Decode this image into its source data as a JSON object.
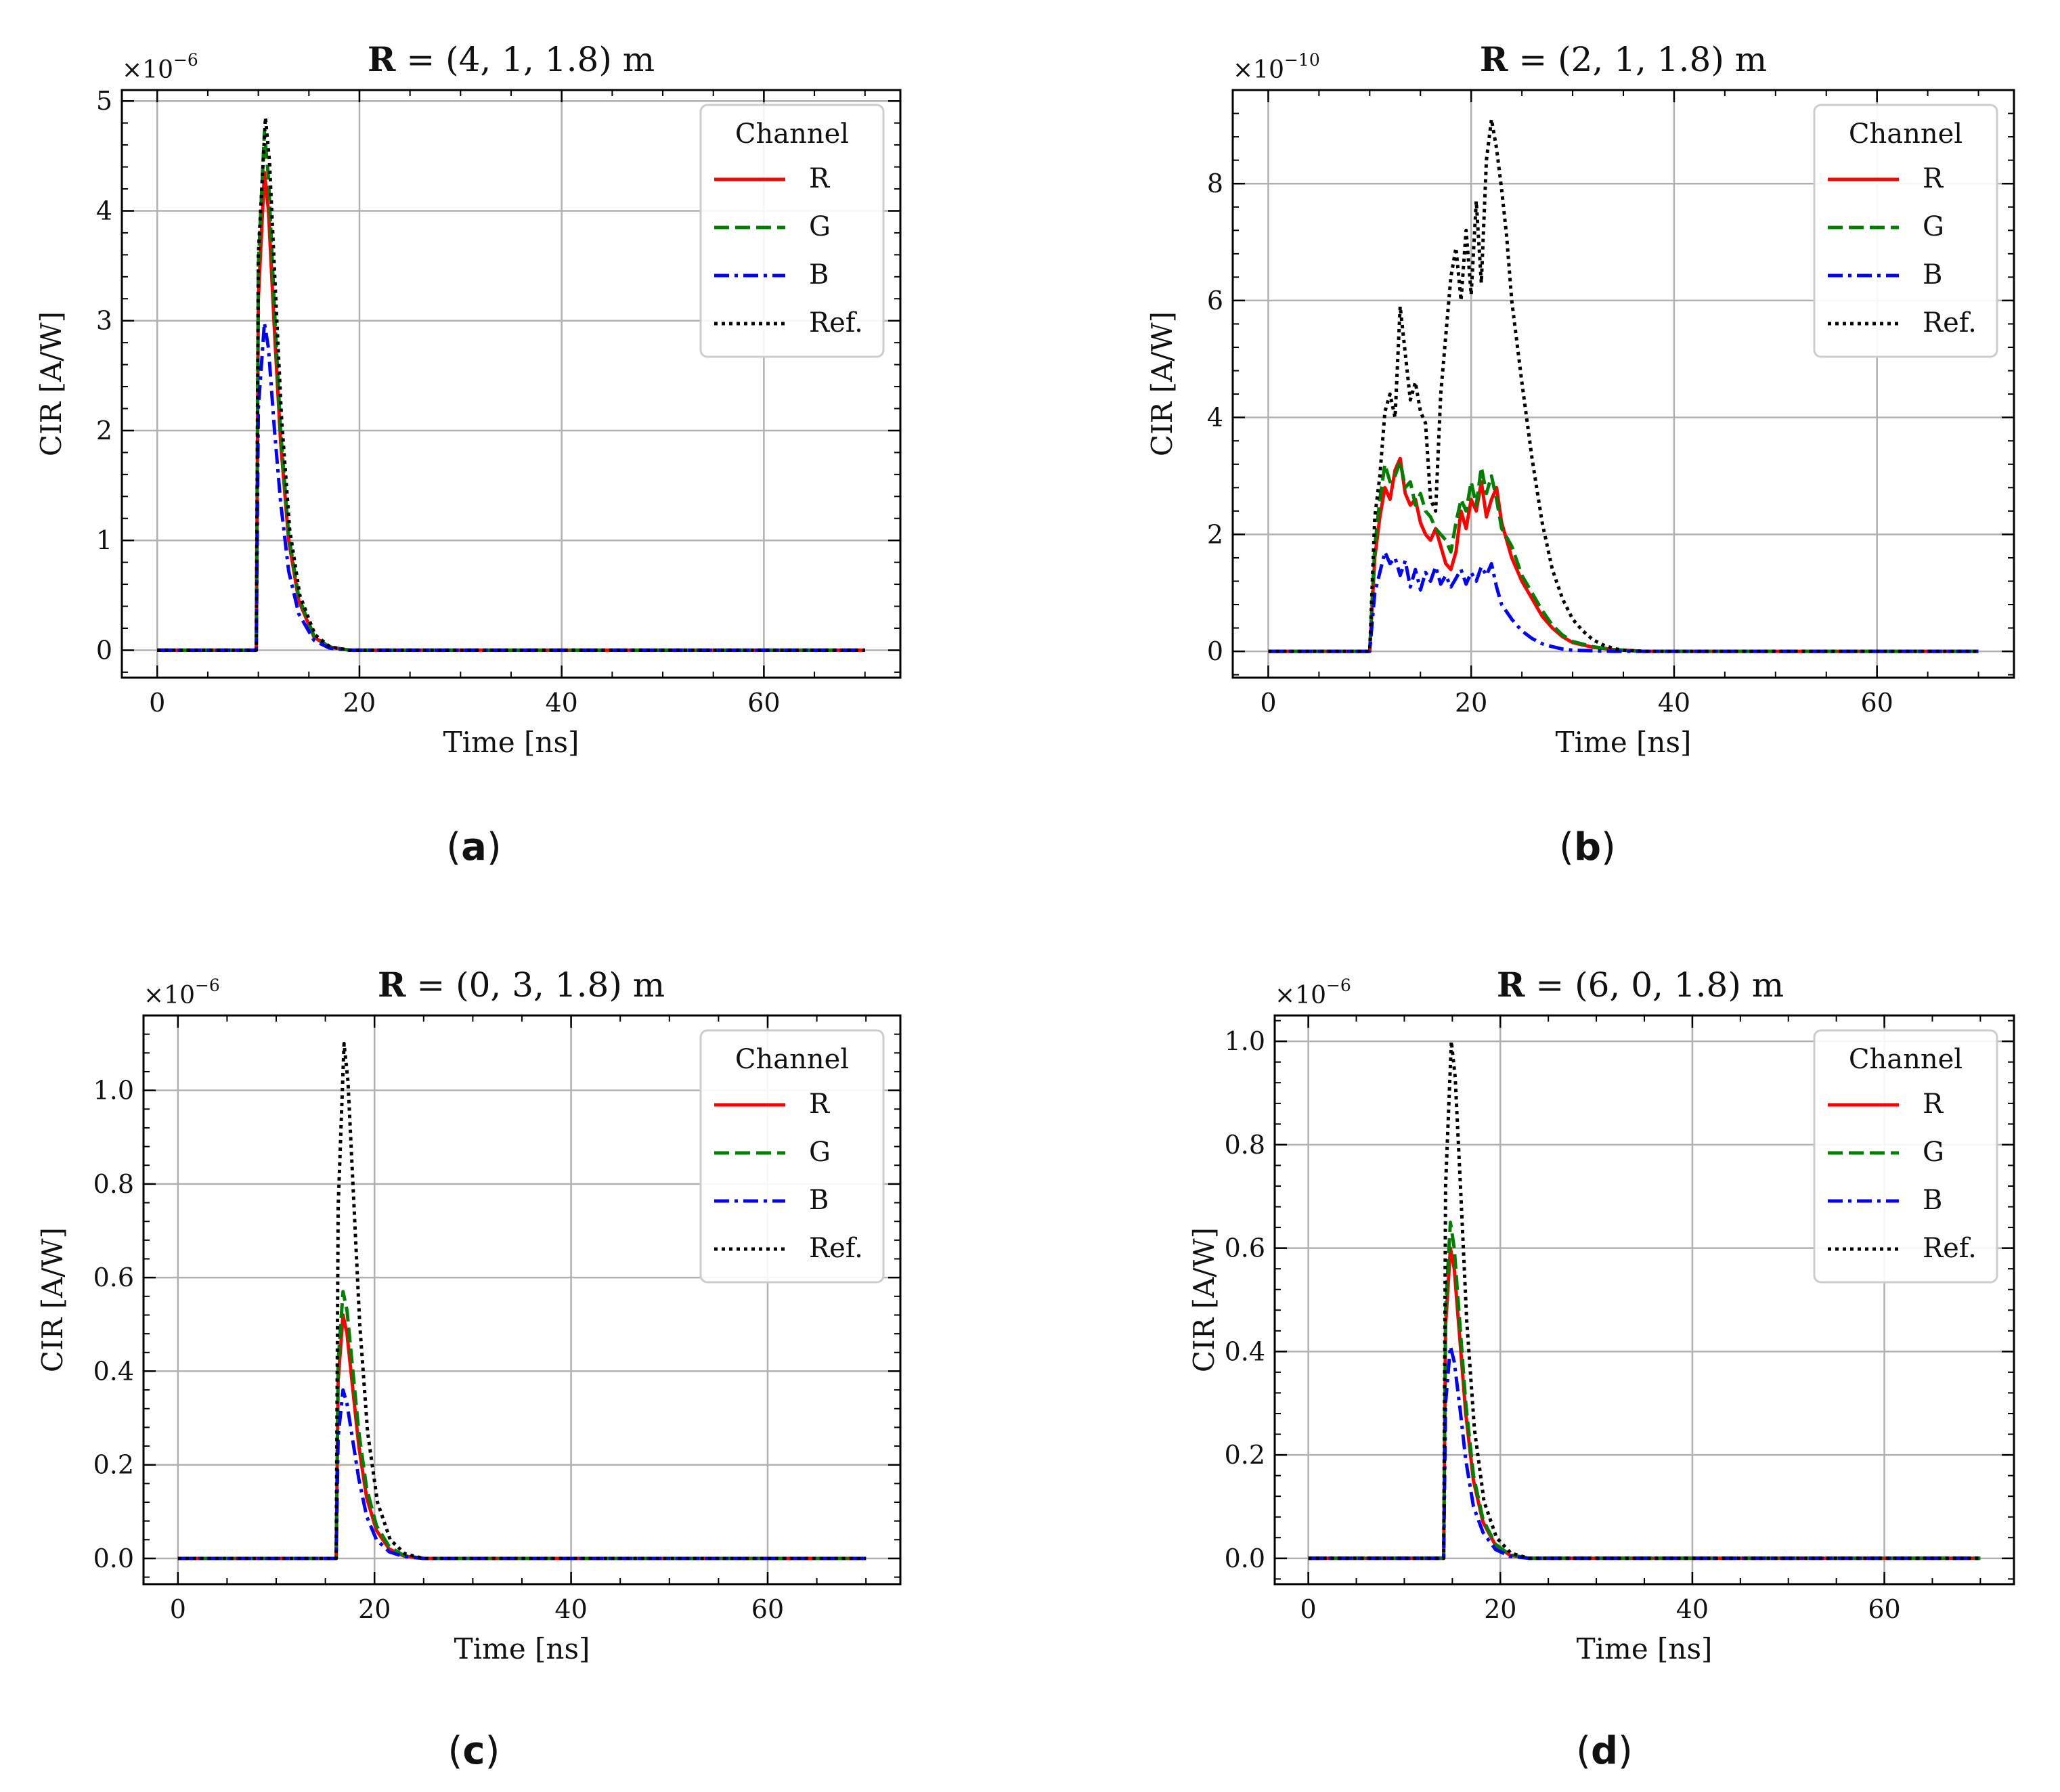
{
  "chart_data": [
    {
      "type": "line",
      "title": "R = (4, 1, 1.8) m",
      "title_bold": "R",
      "title_rest": " = (4, 1, 1.8) m",
      "caption": "a",
      "xlabel": "Time [ns]",
      "ylabel": "CIR [A/W]",
      "multiplier": "×10",
      "multiplier_exp": "−6",
      "xlim": [
        -3.5,
        73.5
      ],
      "ylim": [
        -0.25,
        5.1
      ],
      "xticks": [
        0,
        20,
        40,
        60
      ],
      "yticks": [
        0,
        1,
        2,
        3,
        4,
        5
      ],
      "ytick_labels": [
        "0",
        "1",
        "2",
        "3",
        "4",
        "5"
      ],
      "legend_title": "Channel",
      "series": [
        {
          "name": "R",
          "color": "#ff0000",
          "dash": "solid",
          "x": [
            0,
            9.8,
            10.0,
            10.6,
            11.0,
            11.6,
            12.2,
            13.0,
            14.0,
            15.5,
            17.0,
            19.0,
            25,
            70
          ],
          "y": [
            0,
            0,
            3.2,
            4.35,
            4.0,
            2.9,
            1.9,
            1.0,
            0.45,
            0.12,
            0.03,
            0.0,
            0,
            0
          ]
        },
        {
          "name": "G",
          "color": "#008000",
          "dash": "dashed",
          "x": [
            0,
            9.8,
            10.0,
            10.6,
            11.0,
            11.6,
            12.2,
            13.0,
            14.0,
            15.5,
            17.0,
            19.0,
            25,
            70
          ],
          "y": [
            0,
            0,
            3.5,
            4.72,
            4.3,
            3.1,
            2.0,
            1.05,
            0.48,
            0.13,
            0.03,
            0.0,
            0,
            0
          ]
        },
        {
          "name": "B",
          "color": "#0000ff",
          "dash": "dashdot",
          "x": [
            0,
            9.8,
            10.0,
            10.6,
            11.0,
            11.6,
            12.2,
            13.0,
            14.0,
            15.5,
            17.0,
            19.0,
            25,
            70
          ],
          "y": [
            0,
            0,
            2.2,
            2.98,
            2.75,
            2.0,
            1.35,
            0.72,
            0.33,
            0.09,
            0.02,
            0.0,
            0,
            0
          ]
        },
        {
          "name": "Ref.",
          "color": "#000000",
          "dash": "dotted",
          "x": [
            0,
            9.8,
            10.0,
            10.7,
            11.1,
            11.7,
            12.3,
            13.1,
            14.1,
            15.6,
            17.1,
            19.0,
            25,
            70
          ],
          "y": [
            0,
            0,
            3.6,
            4.85,
            4.45,
            3.25,
            2.1,
            1.1,
            0.5,
            0.14,
            0.03,
            0.0,
            0,
            0
          ]
        }
      ]
    },
    {
      "type": "line",
      "title": "R = (2, 1, 1.8) m",
      "title_bold": "R",
      "title_rest": " = (2, 1, 1.8) m",
      "caption": "b",
      "xlabel": "Time [ns]",
      "ylabel": "CIR [A/W]",
      "multiplier": "×10",
      "multiplier_exp": "−10",
      "xlim": [
        -3.5,
        73.5
      ],
      "ylim": [
        -0.45,
        9.6
      ],
      "xticks": [
        0,
        20,
        40,
        60
      ],
      "yticks": [
        0,
        2,
        4,
        6,
        8
      ],
      "ytick_labels": [
        "0",
        "2",
        "4",
        "6",
        "8"
      ],
      "legend_title": "Channel",
      "series": [
        {
          "name": "R",
          "color": "#ff0000",
          "dash": "solid",
          "x": [
            0,
            10.0,
            10.5,
            11.0,
            11.5,
            12.0,
            12.5,
            13.0,
            13.5,
            14.0,
            14.5,
            15.0,
            15.5,
            16.0,
            16.5,
            17.0,
            17.5,
            18.0,
            18.5,
            19.0,
            19.5,
            20.0,
            20.5,
            21.0,
            21.5,
            22.0,
            22.5,
            23.0,
            24.0,
            25.0,
            26.0,
            27.0,
            28.0,
            29.0,
            30.0,
            32.0,
            34.0,
            37.0,
            70
          ],
          "y": [
            0,
            0,
            1.6,
            2.3,
            2.8,
            2.6,
            3.1,
            3.3,
            2.7,
            2.5,
            2.6,
            2.2,
            2.0,
            1.9,
            2.1,
            1.8,
            1.5,
            1.4,
            1.7,
            2.4,
            2.1,
            2.6,
            2.4,
            2.9,
            2.3,
            2.6,
            2.8,
            2.2,
            1.6,
            1.2,
            0.9,
            0.6,
            0.4,
            0.25,
            0.15,
            0.07,
            0.03,
            0.0,
            0
          ]
        },
        {
          "name": "G",
          "color": "#008000",
          "dash": "dashed",
          "x": [
            0,
            10.0,
            10.5,
            11.0,
            11.5,
            12.0,
            12.5,
            13.0,
            13.5,
            14.0,
            14.5,
            15.0,
            15.5,
            16.0,
            16.5,
            17.0,
            17.5,
            18.0,
            18.5,
            19.0,
            19.5,
            20.0,
            20.5,
            21.0,
            21.5,
            22.0,
            22.5,
            23.0,
            24.0,
            25.0,
            26.0,
            27.0,
            28.0,
            29.0,
            30.0,
            32.0,
            34.0,
            37.0,
            70
          ],
          "y": [
            0,
            0,
            1.8,
            2.6,
            3.2,
            2.9,
            3.0,
            3.25,
            2.8,
            2.9,
            2.5,
            2.7,
            2.4,
            2.3,
            2.1,
            2.0,
            1.9,
            1.7,
            2.2,
            2.6,
            2.4,
            2.9,
            2.5,
            3.15,
            2.7,
            3.0,
            2.6,
            2.1,
            1.8,
            1.3,
            1.0,
            0.7,
            0.45,
            0.28,
            0.17,
            0.08,
            0.03,
            0.0,
            0
          ]
        },
        {
          "name": "B",
          "color": "#0000ff",
          "dash": "dashdot",
          "x": [
            0,
            10.0,
            10.5,
            11.0,
            11.5,
            12.0,
            12.5,
            13.0,
            13.5,
            14.0,
            14.5,
            15.0,
            15.5,
            16.0,
            16.5,
            17.0,
            17.5,
            18.0,
            18.5,
            19.0,
            19.5,
            20.0,
            20.5,
            21.0,
            21.5,
            22.0,
            22.5,
            23.0,
            24.0,
            25.0,
            26.0,
            27.0,
            28.0,
            29.0,
            30.0,
            32.0,
            34.0,
            37.0,
            70
          ],
          "y": [
            0,
            0,
            1.0,
            1.35,
            1.7,
            1.5,
            1.6,
            1.3,
            1.55,
            1.1,
            1.4,
            1.05,
            1.35,
            1.2,
            1.45,
            1.15,
            1.3,
            1.1,
            1.25,
            1.4,
            1.15,
            1.35,
            1.2,
            1.45,
            1.3,
            1.5,
            1.1,
            0.8,
            0.55,
            0.35,
            0.22,
            0.13,
            0.08,
            0.04,
            0.02,
            0.01,
            0.0,
            0.0,
            0
          ]
        },
        {
          "name": "Ref.",
          "color": "#000000",
          "dash": "dotted",
          "x": [
            0,
            10.0,
            10.5,
            11.0,
            11.5,
            12.0,
            12.5,
            13.0,
            13.5,
            14.0,
            14.5,
            15.0,
            15.5,
            16.0,
            16.5,
            17.0,
            17.5,
            18.0,
            18.5,
            19.0,
            19.5,
            20.0,
            20.5,
            21.0,
            21.5,
            22.0,
            22.5,
            23.0,
            23.5,
            24.0,
            25.0,
            26.0,
            27.0,
            28.0,
            29.0,
            30.0,
            31.0,
            32.0,
            33.0,
            34.0,
            35.0,
            37.0,
            70
          ],
          "y": [
            0,
            0,
            2.3,
            3.0,
            4.1,
            4.4,
            4.0,
            5.9,
            5.1,
            4.3,
            4.6,
            4.1,
            3.9,
            2.6,
            2.4,
            4.4,
            5.4,
            6.4,
            6.9,
            6.0,
            7.2,
            6.1,
            7.7,
            6.3,
            8.4,
            9.1,
            8.6,
            7.9,
            7.1,
            6.0,
            4.6,
            3.3,
            2.2,
            1.4,
            0.9,
            0.55,
            0.35,
            0.2,
            0.11,
            0.05,
            0.02,
            0.0,
            0
          ]
        }
      ]
    },
    {
      "type": "line",
      "title": "R = (0, 3, 1.8) m",
      "title_bold": "R",
      "title_rest": " = (0, 3, 1.8) m",
      "caption": "c",
      "xlabel": "Time [ns]",
      "ylabel": "CIR [A/W]",
      "multiplier": "×10",
      "multiplier_exp": "−6",
      "xlim": [
        -3.5,
        73.5
      ],
      "ylim": [
        -0.055,
        1.16
      ],
      "xticks": [
        0,
        20,
        40,
        60
      ],
      "yticks": [
        0,
        0.2,
        0.4,
        0.6,
        0.8,
        1.0
      ],
      "ytick_labels": [
        "0.0",
        "0.2",
        "0.4",
        "0.6",
        "0.8",
        "1.0"
      ],
      "legend_title": "Channel",
      "series": [
        {
          "name": "R",
          "color": "#ff0000",
          "dash": "solid",
          "x": [
            0,
            16.1,
            16.3,
            16.8,
            17.2,
            17.8,
            18.4,
            19.2,
            20.2,
            21.5,
            23.0,
            25.0,
            30,
            70
          ],
          "y": [
            0,
            0,
            0.38,
            0.52,
            0.48,
            0.36,
            0.24,
            0.13,
            0.06,
            0.02,
            0.005,
            0.0,
            0,
            0
          ]
        },
        {
          "name": "G",
          "color": "#008000",
          "dash": "dashed",
          "x": [
            0,
            16.1,
            16.3,
            16.8,
            17.2,
            17.8,
            18.4,
            19.2,
            20.2,
            21.5,
            23.0,
            25.0,
            30,
            70
          ],
          "y": [
            0,
            0,
            0.42,
            0.57,
            0.53,
            0.4,
            0.27,
            0.15,
            0.07,
            0.025,
            0.006,
            0.0,
            0,
            0
          ]
        },
        {
          "name": "B",
          "color": "#0000ff",
          "dash": "dashdot",
          "x": [
            0,
            16.1,
            16.3,
            16.8,
            17.2,
            17.8,
            18.4,
            19.2,
            20.2,
            21.5,
            23.0,
            25.0,
            30,
            70
          ],
          "y": [
            0,
            0,
            0.26,
            0.36,
            0.33,
            0.25,
            0.17,
            0.09,
            0.04,
            0.014,
            0.004,
            0.0,
            0,
            0
          ]
        },
        {
          "name": "Ref.",
          "color": "#000000",
          "dash": "dotted",
          "x": [
            0,
            16.1,
            16.3,
            16.9,
            17.3,
            17.9,
            18.5,
            19.3,
            20.3,
            21.6,
            23.1,
            25.0,
            30,
            70
          ],
          "y": [
            0,
            0,
            0.75,
            1.1,
            1.02,
            0.76,
            0.5,
            0.27,
            0.12,
            0.04,
            0.01,
            0.0,
            0,
            0
          ]
        }
      ]
    },
    {
      "type": "line",
      "title": "R = (6, 0, 1.8) m",
      "title_bold": "R",
      "title_rest": " = (6, 0, 1.8) m",
      "caption": "d",
      "xlabel": "Time [ns]",
      "ylabel": "CIR [A/W]",
      "multiplier": "×10",
      "multiplier_exp": "−6",
      "xlim": [
        -3.5,
        73.5
      ],
      "ylim": [
        -0.05,
        1.05
      ],
      "xticks": [
        0,
        20,
        40,
        60
      ],
      "yticks": [
        0,
        0.2,
        0.4,
        0.6,
        0.8,
        1.0
      ],
      "ytick_labels": [
        "0.0",
        "0.2",
        "0.4",
        "0.6",
        "0.8",
        "1.0"
      ],
      "legend_title": "Channel",
      "series": [
        {
          "name": "R",
          "color": "#ff0000",
          "dash": "solid",
          "x": [
            0,
            14.1,
            14.3,
            14.8,
            15.2,
            15.8,
            16.4,
            17.2,
            18.2,
            19.5,
            21.0,
            23.0,
            28,
            70
          ],
          "y": [
            0,
            0,
            0.45,
            0.6,
            0.56,
            0.42,
            0.28,
            0.15,
            0.07,
            0.025,
            0.006,
            0.0,
            0,
            0
          ]
        },
        {
          "name": "G",
          "color": "#008000",
          "dash": "dashed",
          "x": [
            0,
            14.1,
            14.3,
            14.8,
            15.2,
            15.8,
            16.4,
            17.2,
            18.2,
            19.5,
            21.0,
            23.0,
            28,
            70
          ],
          "y": [
            0,
            0,
            0.48,
            0.65,
            0.6,
            0.45,
            0.3,
            0.16,
            0.075,
            0.027,
            0.007,
            0.0,
            0,
            0
          ]
        },
        {
          "name": "B",
          "color": "#0000ff",
          "dash": "dashdot",
          "x": [
            0,
            14.1,
            14.3,
            14.8,
            15.2,
            15.8,
            16.4,
            17.2,
            18.2,
            19.5,
            21.0,
            23.0,
            28,
            70
          ],
          "y": [
            0,
            0,
            0.3,
            0.41,
            0.38,
            0.29,
            0.19,
            0.1,
            0.05,
            0.017,
            0.004,
            0.0,
            0,
            0
          ]
        },
        {
          "name": "Ref.",
          "color": "#000000",
          "dash": "dotted",
          "x": [
            0,
            14.1,
            14.3,
            14.9,
            15.3,
            15.9,
            16.5,
            17.3,
            18.3,
            19.6,
            21.1,
            23.0,
            28,
            70
          ],
          "y": [
            0,
            0,
            0.72,
            1.0,
            0.93,
            0.7,
            0.46,
            0.25,
            0.11,
            0.04,
            0.01,
            0.0,
            0,
            0
          ]
        }
      ]
    }
  ]
}
